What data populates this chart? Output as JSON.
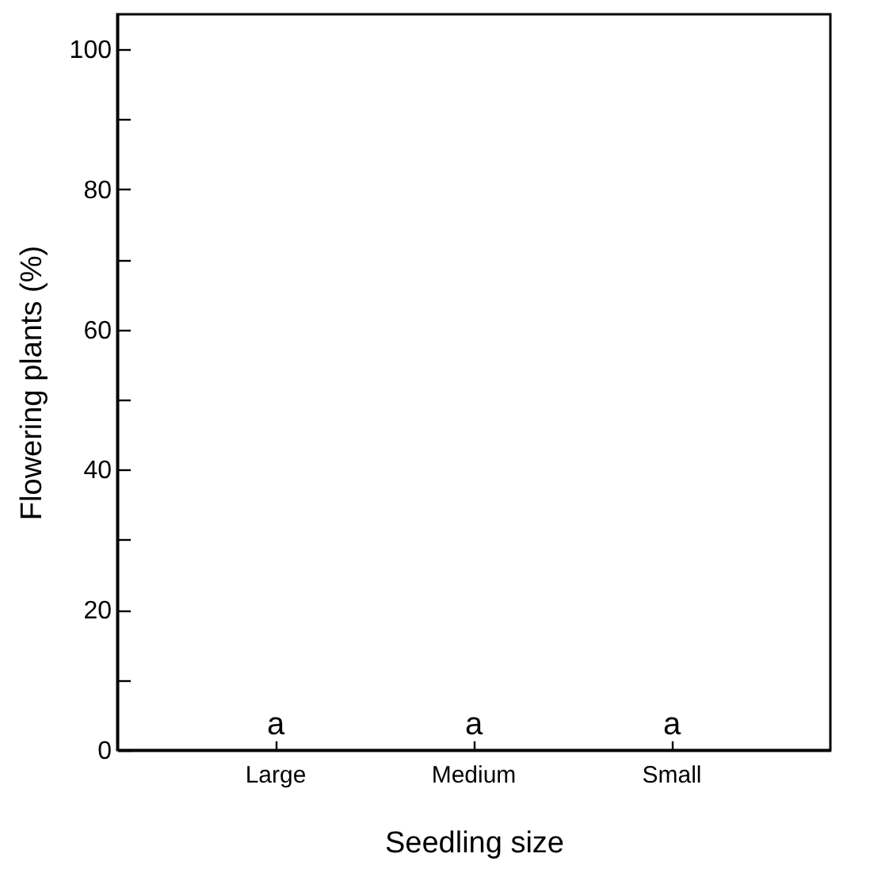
{
  "chart_data": {
    "type": "bar",
    "xlabel": "Seedling size",
    "ylabel": "Flowering plants (%)",
    "categories": [
      "Large",
      "Medium",
      "Small"
    ],
    "values": [
      0,
      0,
      0
    ],
    "ylim": [
      0,
      105
    ],
    "yticks": [
      0,
      {
        "value": 10,
        "label": null
      },
      20,
      {
        "value": 30,
        "label": null
      },
      40,
      {
        "value": 50,
        "label": null
      },
      60,
      {
        "value": 70,
        "label": null
      },
      80,
      {
        "value": 90,
        "label": null
      },
      100
    ],
    "annotations": [
      {
        "text": "a",
        "x": "Large",
        "y": 0
      },
      {
        "text": "a",
        "x": "Medium",
        "y": 0
      },
      {
        "text": "a",
        "x": "Small",
        "y": 0
      }
    ],
    "grid": false
  }
}
